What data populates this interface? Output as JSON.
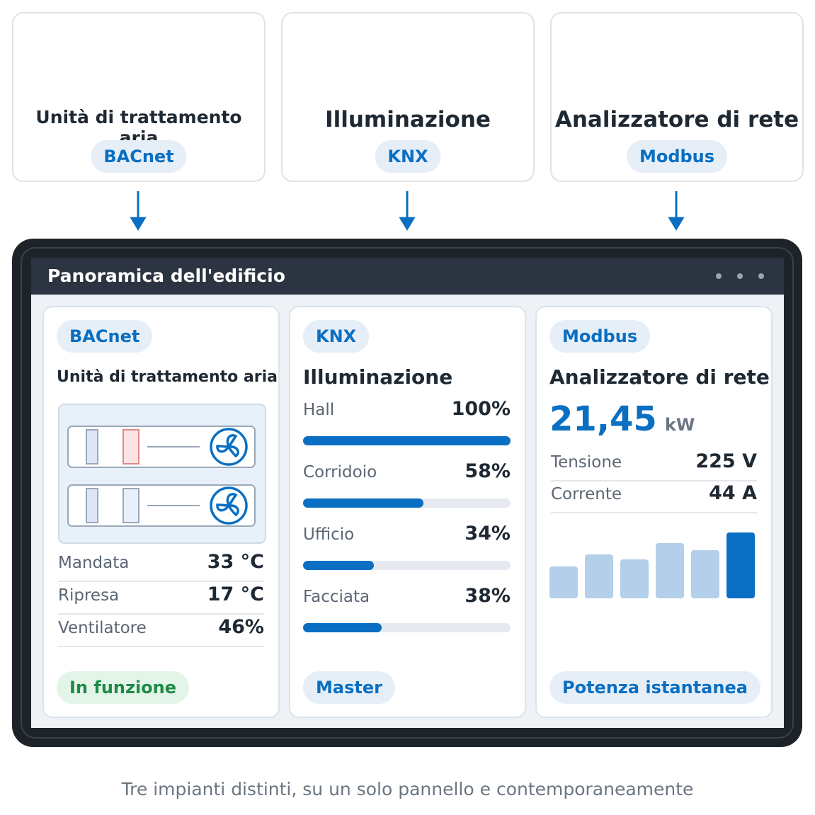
{
  "sources": [
    {
      "title": "Unità di trattamento aria",
      "protocol": "BACnet"
    },
    {
      "title": "Illuminazione",
      "protocol": "KNX"
    },
    {
      "title": "Analizzatore di rete",
      "protocol": "Modbus"
    }
  ],
  "panel": {
    "title": "Panoramica dell'edificio",
    "ahu": {
      "protocol": "BACnet",
      "title": "Unità di trattamento aria",
      "readings": [
        {
          "label": "Mandata",
          "value": "33 °C"
        },
        {
          "label": "Ripresa",
          "value": "17 °C"
        },
        {
          "label": "Ventilatore",
          "value": "46%"
        }
      ],
      "status": "In funzione"
    },
    "lighting": {
      "protocol": "KNX",
      "title": "Illuminazione",
      "zones": [
        {
          "name": "Hall",
          "value": 100,
          "label": "100%"
        },
        {
          "name": "Corridoio",
          "value": 58,
          "label": "58%"
        },
        {
          "name": "Ufficio",
          "value": 34,
          "label": "34%"
        },
        {
          "name": "Facciata",
          "value": 38,
          "label": "38%"
        }
      ],
      "footer": "Master"
    },
    "meter": {
      "protocol": "Modbus",
      "title": "Analizzatore di rete",
      "power": "21,45",
      "unit": "kW",
      "readings": [
        {
          "label": "Tensione",
          "value": "225 V"
        },
        {
          "label": "Corrente",
          "value": "44 A"
        }
      ],
      "history": [
        45,
        62,
        55,
        78,
        68,
        93
      ],
      "footer": "Potenza istantanea"
    }
  },
  "caption": "Tre impianti distinti, su un solo pannello e contemporaneamente"
}
